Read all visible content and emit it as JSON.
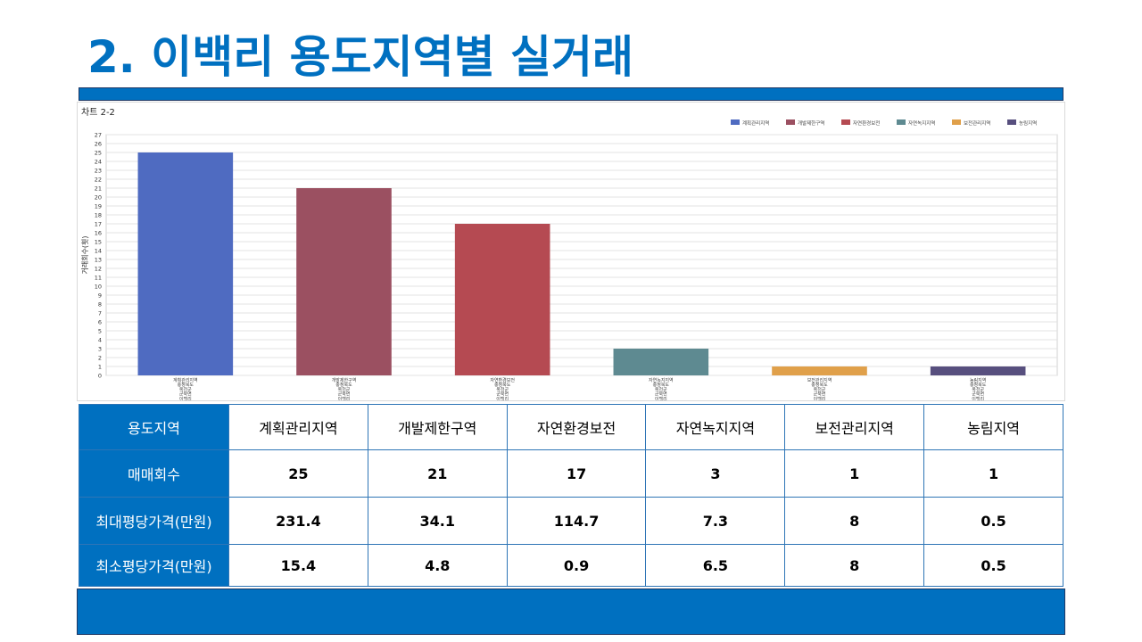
{
  "slide": {
    "title": "2. 이백리 용도지역별 실거래"
  },
  "colors": {
    "accent": "#0070c0",
    "table_border": "#2e75b6"
  },
  "chart_caption": "차트 2-2",
  "chart_data": {
    "type": "bar",
    "ylabel": "거래회수(횟)",
    "ylim": [
      0,
      27
    ],
    "grid": true,
    "legend_position": "top-right",
    "categories": [
      [
        "계획관리지역",
        "충청북도",
        "옥천군",
        "군북면",
        "이백리"
      ],
      [
        "개발제한구역",
        "충청북도",
        "옥천군",
        "군북면",
        "이백리"
      ],
      [
        "자연환경보전",
        "충청북도",
        "옥천군",
        "군북면",
        "이백리"
      ],
      [
        "자연녹지지역",
        "충청북도",
        "옥천군",
        "군북면",
        "이백리"
      ],
      [
        "보전관리지역",
        "충청북도",
        "옥천군",
        "군북면",
        "이백리"
      ],
      [
        "농림지역",
        "충청북도",
        "옥천군",
        "군북면",
        "이백리"
      ]
    ],
    "series": [
      {
        "name": "계획관리지역",
        "color": "#4f6bc1",
        "values": [
          25,
          null,
          null,
          null,
          null,
          null
        ]
      },
      {
        "name": "개발제한구역",
        "color": "#9b5061",
        "values": [
          null,
          21,
          null,
          null,
          null,
          null
        ]
      },
      {
        "name": "자연환경보전",
        "color": "#b54a52",
        "values": [
          null,
          null,
          17,
          null,
          null,
          null
        ]
      },
      {
        "name": "자연녹지지역",
        "color": "#5e8a91",
        "values": [
          null,
          null,
          null,
          3,
          null,
          null
        ]
      },
      {
        "name": "보전관리지역",
        "color": "#e0a04a",
        "values": [
          null,
          null,
          null,
          null,
          1,
          null
        ]
      },
      {
        "name": "농림지역",
        "color": "#574f7e",
        "values": [
          null,
          null,
          null,
          null,
          null,
          1
        ]
      }
    ]
  },
  "table": {
    "rows": [
      {
        "label": "용도지역",
        "values": [
          "계획관리지역",
          "개발제한구역",
          "자연환경보전",
          "자연녹지지역",
          "보전관리지역",
          "농림지역"
        ]
      },
      {
        "label": "매매회수",
        "values": [
          "25",
          "21",
          "17",
          "3",
          "1",
          "1"
        ]
      },
      {
        "label": "최대평당가격(만원)",
        "values": [
          "231.4",
          "34.1",
          "114.7",
          "7.3",
          "8",
          "0.5"
        ]
      },
      {
        "label": "최소평당가격(만원)",
        "values": [
          "15.4",
          "4.8",
          "0.9",
          "6.5",
          "8",
          "0.5"
        ]
      }
    ]
  }
}
